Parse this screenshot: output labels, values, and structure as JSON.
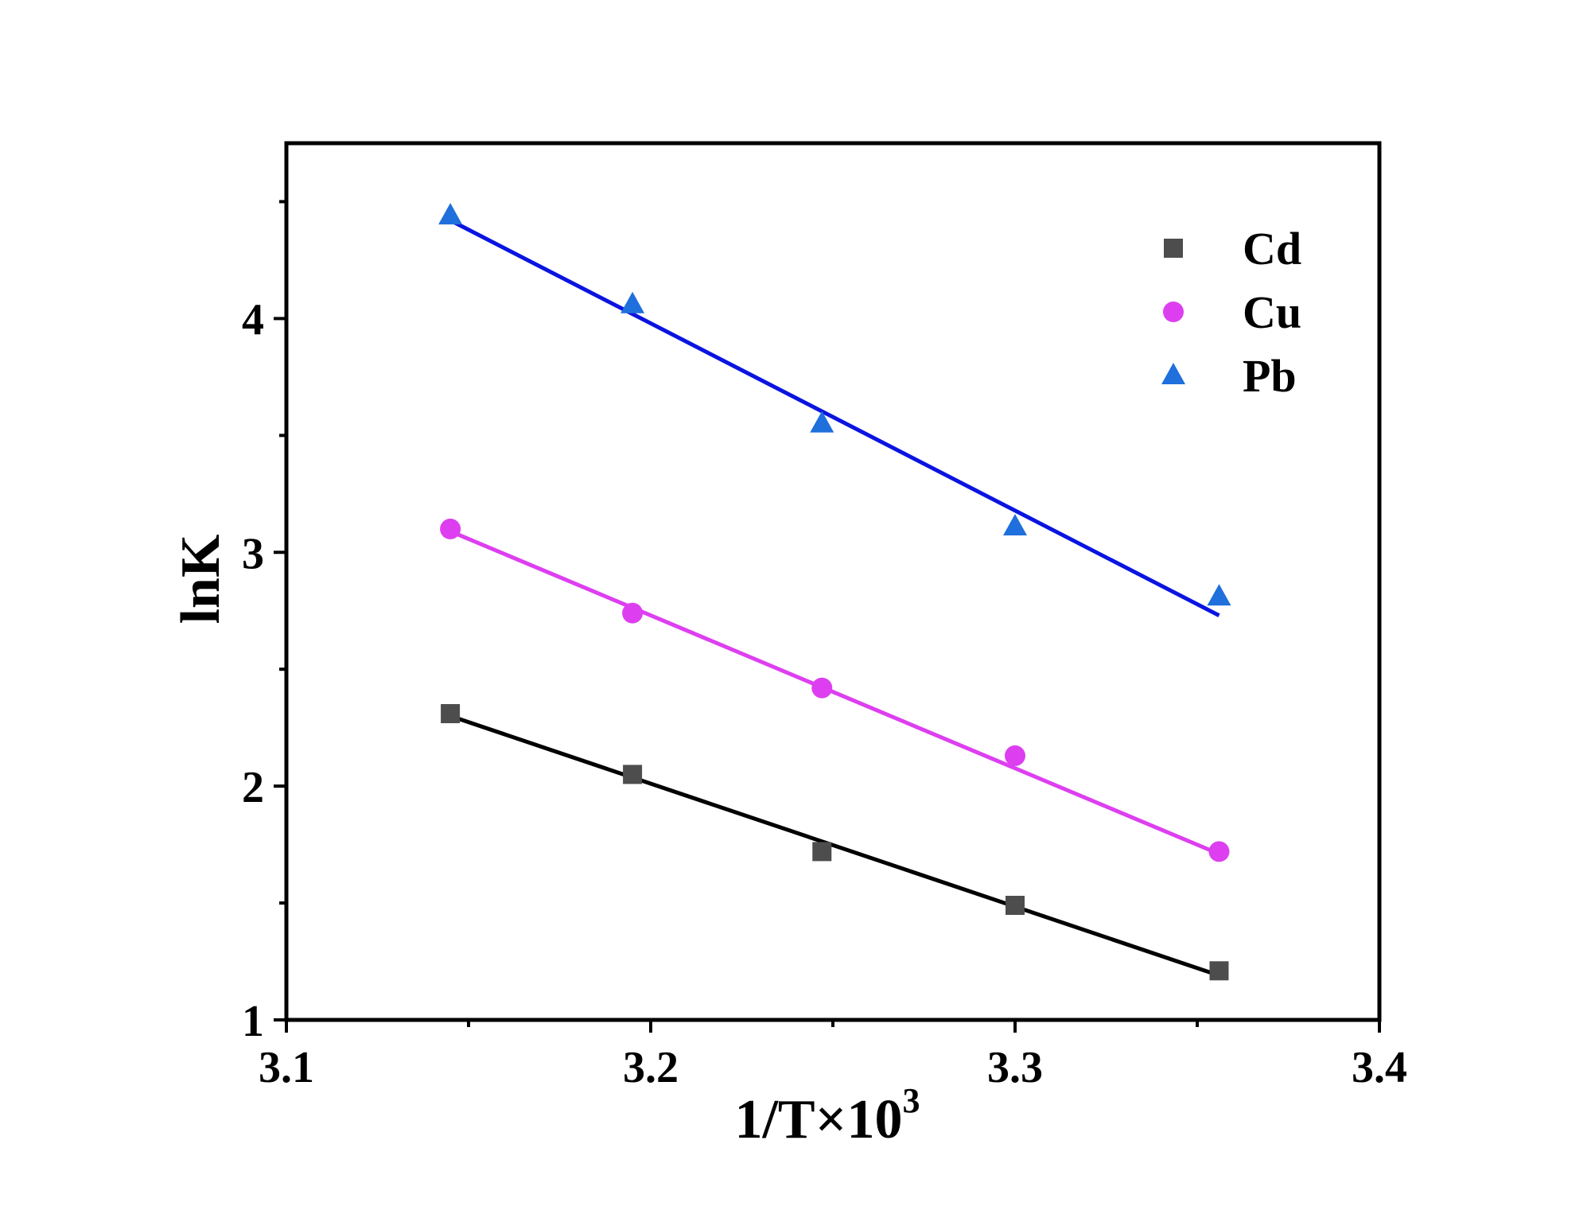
{
  "chart_data": {
    "type": "scatter",
    "title": "",
    "xlabel": "1/T×10",
    "xlabel_superscript": "3",
    "ylabel": "lnK",
    "xlim": [
      3.1,
      3.4
    ],
    "ylim": [
      1,
      4.75
    ],
    "x_ticks": [
      3.1,
      3.2,
      3.3,
      3.4
    ],
    "x_tick_labels": [
      "3.1",
      "3.2",
      "3.3",
      "3.4"
    ],
    "x_minor_ticks": [
      3.15,
      3.25,
      3.35
    ],
    "y_ticks": [
      1,
      2,
      3,
      4
    ],
    "y_tick_labels": [
      "1",
      "2",
      "3",
      "4"
    ],
    "y_minor_ticks": [
      1.5,
      2.5,
      3.5,
      4.5
    ],
    "grid": false,
    "legend_position": "top-right",
    "series": [
      {
        "name": "Cd",
        "marker": "square",
        "marker_color": "#4d4d4d",
        "line_color": "#000000",
        "x": [
          3.145,
          3.195,
          3.247,
          3.3,
          3.356
        ],
        "y": [
          2.31,
          2.05,
          1.72,
          1.49,
          1.21
        ],
        "fit": [
          [
            3.145,
            2.3
          ],
          [
            3.356,
            1.19
          ]
        ]
      },
      {
        "name": "Cu",
        "marker": "circle",
        "marker_color": "#dd3ff0",
        "line_color": "#dd3ff0",
        "x": [
          3.145,
          3.195,
          3.247,
          3.3,
          3.356
        ],
        "y": [
          3.1,
          2.74,
          2.42,
          2.13,
          1.72
        ],
        "fit": [
          [
            3.145,
            3.09
          ],
          [
            3.356,
            1.71
          ]
        ]
      },
      {
        "name": "Pb",
        "marker": "triangle",
        "marker_color": "#1f6fdc",
        "line_color": "#0a14e0",
        "x": [
          3.145,
          3.195,
          3.247,
          3.3,
          3.356
        ],
        "y": [
          4.44,
          4.06,
          3.55,
          3.11,
          2.81
        ],
        "fit": [
          [
            3.145,
            4.42
          ],
          [
            3.356,
            2.73
          ]
        ]
      }
    ]
  }
}
